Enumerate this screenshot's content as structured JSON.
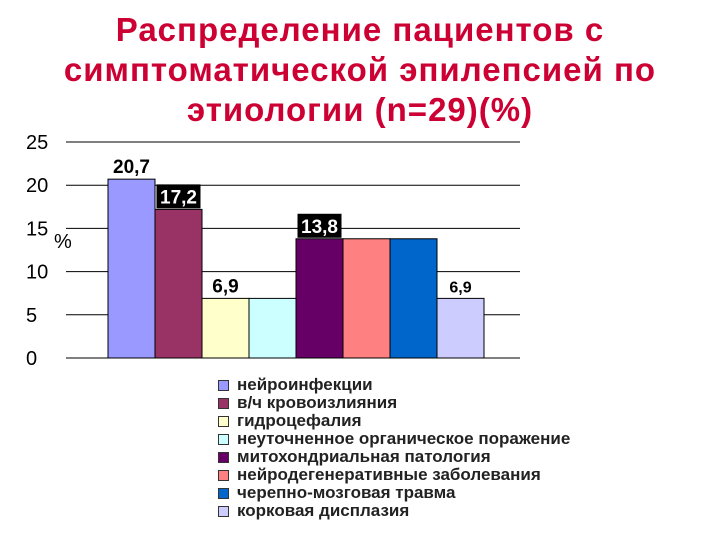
{
  "title": {
    "lines": [
      "Распределение пациентов с",
      "симптоматической эпилепсией по",
      "этиологии (n=29)(%)"
    ]
  },
  "chart_data": {
    "type": "bar",
    "ylabel": "%",
    "ylim": [
      0,
      25
    ],
    "yticks": [
      "0",
      "5",
      "10",
      "15",
      "20",
      "25"
    ],
    "grid": true,
    "legend_position": "bottom-right",
    "series": [
      {
        "name": "нейроинфекции",
        "value": 20.7,
        "label": "20,7",
        "color": "#9999ff"
      },
      {
        "name": "в/ч кровоизлияния",
        "value": 17.2,
        "label": "17,2",
        "color": "#993366"
      },
      {
        "name": "гидроцефалия",
        "value": 6.9,
        "label": "6,9",
        "color": "#ffffcc"
      },
      {
        "name": "неуточненное органическое поражение",
        "value": 6.9,
        "label": "",
        "color": "#ccffff"
      },
      {
        "name": "митохондриальная патология",
        "value": 13.8,
        "label": "13,8",
        "color": "#660066"
      },
      {
        "name": "нейродегенеративные заболевания",
        "value": 13.8,
        "label": "",
        "color": "#ff8080"
      },
      {
        "name": "черепно-мозговая травма",
        "value": 13.8,
        "label": "",
        "color": "#0066cc"
      },
      {
        "name": "корковая дисплазия",
        "value": 6.9,
        "label": "6,9",
        "color": "#ccccff"
      }
    ]
  }
}
